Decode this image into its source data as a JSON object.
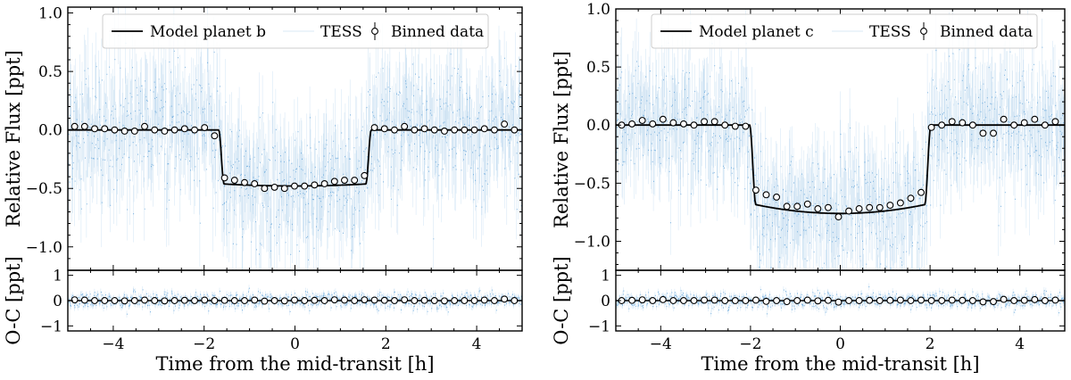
{
  "chart_data": [
    {
      "type": "scatter",
      "panel": "planet-b",
      "xlabel": "Time from the mid-transit [h]",
      "ylabel": "Relative Flux [ppt]",
      "residual_ylabel": "O-C [ppt]",
      "xlim": [
        -5,
        5
      ],
      "ylim": [
        -1.2,
        1.05
      ],
      "residual_ylim": [
        -1.2,
        1.2
      ],
      "x_ticks": [
        -4,
        -2,
        0,
        2,
        4
      ],
      "y_ticks": [
        -1.0,
        -0.5,
        0.0,
        0.5,
        1.0
      ],
      "y_tick_labels": [
        "−1.0",
        "−0.5",
        "0.0",
        "0.5",
        "1.0"
      ],
      "x_tick_labels": [
        "−4",
        "−2",
        "0",
        "2",
        "4"
      ],
      "residual_ticks": [
        -1,
        0,
        1
      ],
      "residual_tick_labels": [
        "−1",
        "0",
        "1"
      ],
      "legend": {
        "position": "top",
        "entries": [
          "Model planet b",
          "TESS",
          "Binned data"
        ]
      },
      "colors": {
        "raw": "#3d8fd1",
        "model": "#000000"
      },
      "raw_scatter_ppt": 0.28,
      "model": {
        "depth": 0.47,
        "t_ingress": -1.62,
        "t_egress": 1.62,
        "ingress_duration": 0.12,
        "limb_darkening_curvature": 0.04
      },
      "binned": {
        "x": [
          -4.85,
          -4.63,
          -4.41,
          -4.19,
          -3.97,
          -3.75,
          -3.53,
          -3.31,
          -3.09,
          -2.87,
          -2.65,
          -2.43,
          -2.21,
          -1.99,
          -1.77,
          -1.55,
          -1.33,
          -1.11,
          -0.89,
          -0.67,
          -0.45,
          -0.23,
          -0.01,
          0.21,
          0.43,
          0.65,
          0.87,
          1.09,
          1.31,
          1.53,
          1.75,
          1.97,
          2.19,
          2.41,
          2.63,
          2.85,
          3.07,
          3.29,
          3.51,
          3.73,
          3.95,
          4.17,
          4.39,
          4.61,
          4.83
        ],
        "y": [
          0.03,
          0.03,
          0.01,
          0.01,
          0.0,
          -0.01,
          -0.01,
          0.03,
          0.0,
          -0.01,
          0.0,
          0.01,
          0.0,
          0.02,
          -0.05,
          -0.41,
          -0.43,
          -0.45,
          -0.46,
          -0.5,
          -0.49,
          -0.5,
          -0.48,
          -0.48,
          -0.47,
          -0.46,
          -0.44,
          -0.43,
          -0.43,
          -0.39,
          0.02,
          0.01,
          0.0,
          0.03,
          0.0,
          0.01,
          0.0,
          -0.01,
          0.0,
          0.0,
          0.0,
          0.01,
          0.0,
          0.05,
          0.0
        ]
      },
      "residuals_binned": [
        0.03,
        0.02,
        0.0,
        0.0,
        0.0,
        -0.01,
        0.0,
        0.02,
        0.0,
        -0.01,
        0.0,
        0.01,
        0.0,
        0.02,
        0.0,
        0.01,
        0.0,
        0.0,
        0.02,
        -0.02,
        0.0,
        -0.01,
        0.02,
        0.0,
        0.01,
        0.0,
        0.03,
        0.02,
        0.0,
        0.03,
        0.02,
        0.01,
        0.0,
        0.03,
        0.0,
        0.01,
        0.0,
        -0.01,
        0.0,
        0.0,
        0.0,
        0.02,
        0.0,
        0.06,
        0.0
      ]
    },
    {
      "type": "scatter",
      "panel": "planet-c",
      "xlabel": "Time from the mid-transit [h]",
      "ylabel": "Relative Flux [ppt]",
      "residual_ylabel": "O-C [ppt]",
      "xlim": [
        -5,
        5
      ],
      "ylim": [
        -1.25,
        1.0
      ],
      "residual_ylim": [
        -1.2,
        1.2
      ],
      "x_ticks": [
        -4,
        -2,
        0,
        2,
        4
      ],
      "y_ticks": [
        -1.0,
        -0.5,
        0.0,
        0.5,
        1.0
      ],
      "y_tick_labels": [
        "−1.0",
        "−0.5",
        "0.0",
        "0.5",
        "1.0"
      ],
      "x_tick_labels": [
        "−4",
        "−2",
        "0",
        "2",
        "4"
      ],
      "residual_ticks": [
        -1,
        0,
        1
      ],
      "residual_tick_labels": [
        "−1",
        "0",
        "1"
      ],
      "legend": {
        "position": "top",
        "entries": [
          "Model planet c",
          "TESS",
          "Binned data"
        ]
      },
      "colors": {
        "raw": "#3d8fd1",
        "model": "#000000"
      },
      "raw_scatter_ppt": 0.28,
      "model": {
        "depth": 0.72,
        "t_ingress": -1.95,
        "t_egress": 1.95,
        "ingress_duration": 0.14,
        "limb_darkening_curvature": 0.12
      },
      "binned": {
        "x": [
          -4.87,
          -4.64,
          -4.41,
          -4.18,
          -3.95,
          -3.72,
          -3.49,
          -3.26,
          -3.03,
          -2.8,
          -2.57,
          -2.34,
          -2.11,
          -1.88,
          -1.65,
          -1.42,
          -1.19,
          -0.96,
          -0.73,
          -0.5,
          -0.27,
          -0.04,
          0.19,
          0.42,
          0.65,
          0.88,
          1.11,
          1.34,
          1.57,
          1.8,
          2.03,
          2.26,
          2.49,
          2.72,
          2.95,
          3.18,
          3.41,
          3.64,
          3.87,
          4.1,
          4.33,
          4.56,
          4.79
        ],
        "y": [
          0.0,
          0.01,
          0.04,
          0.01,
          0.05,
          0.02,
          0.01,
          0.0,
          0.03,
          0.03,
          0.0,
          -0.01,
          -0.01,
          -0.56,
          -0.6,
          -0.62,
          -0.7,
          -0.7,
          -0.68,
          -0.72,
          -0.71,
          -0.79,
          -0.74,
          -0.72,
          -0.71,
          -0.71,
          -0.69,
          -0.67,
          -0.63,
          -0.58,
          -0.02,
          0.0,
          0.03,
          0.02,
          0.0,
          -0.07,
          -0.07,
          0.05,
          0.0,
          0.02,
          0.05,
          0.0,
          0.03
        ]
      },
      "residuals_binned": [
        0.0,
        0.01,
        0.03,
        0.0,
        0.04,
        0.0,
        0.0,
        0.0,
        0.02,
        0.02,
        0.0,
        0.0,
        0.0,
        0.02,
        -0.03,
        0.0,
        -0.04,
        0.0,
        0.02,
        -0.01,
        0.01,
        -0.06,
        0.0,
        0.0,
        0.01,
        0.0,
        0.01,
        0.02,
        0.0,
        0.02,
        0.0,
        0.0,
        0.02,
        0.01,
        0.0,
        -0.05,
        -0.04,
        0.05,
        0.0,
        0.01,
        0.04,
        0.0,
        0.02
      ]
    }
  ]
}
